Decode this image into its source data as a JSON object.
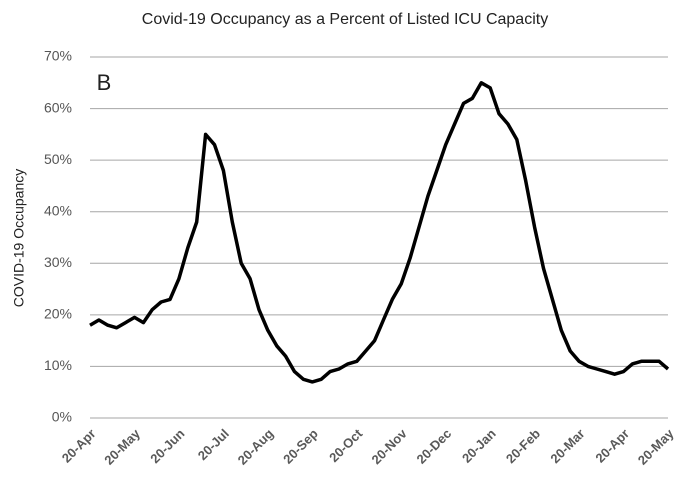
{
  "chart_data": {
    "type": "line",
    "title": "Covid-19 Occupancy as a Percent of Listed ICU Capacity",
    "annotation": "B",
    "y_label": "COVID-19 Occupancy",
    "categories": [
      "20-Apr",
      null,
      null,
      null,
      null,
      "20-May",
      null,
      null,
      null,
      null,
      "20-Jun",
      null,
      null,
      null,
      null,
      "20-Jul",
      null,
      null,
      null,
      null,
      "20-Aug",
      null,
      null,
      null,
      null,
      "20-Sep",
      null,
      null,
      null,
      null,
      "20-Oct",
      null,
      null,
      null,
      null,
      "20-Nov",
      null,
      null,
      null,
      null,
      "20-Dec",
      null,
      null,
      null,
      null,
      "20-Jan",
      null,
      null,
      null,
      null,
      "20-Feb",
      null,
      null,
      null,
      null,
      "20-Mar",
      null,
      null,
      null,
      null,
      "20-Apr",
      null,
      null,
      null,
      null,
      "20-May"
    ],
    "series": [
      {
        "name": "COVID-19 Occupancy",
        "color": "#000000",
        "values": [
          18,
          19,
          18,
          17.5,
          18.5,
          19.5,
          18.5,
          21,
          22.5,
          23,
          27,
          33,
          38,
          55,
          53,
          48,
          38,
          30,
          27,
          21,
          17,
          14,
          12,
          9,
          7.5,
          7,
          7.5,
          9,
          9.5,
          10.5,
          11,
          13,
          15,
          19,
          23,
          26,
          31,
          37,
          43,
          48,
          53,
          57,
          61,
          62,
          65,
          64,
          59,
          57,
          54,
          46,
          37,
          29,
          23,
          17,
          13,
          11,
          10,
          9.5,
          9,
          8.5,
          9,
          10.5,
          11,
          11,
          11,
          9.5
        ]
      }
    ],
    "ylim": [
      0,
      70
    ],
    "yticks": [
      {
        "value": 0,
        "label": "0%"
      },
      {
        "value": 10,
        "label": "10%"
      },
      {
        "value": 20,
        "label": "20%"
      },
      {
        "value": 30,
        "label": "30%"
      },
      {
        "value": 40,
        "label": "40%"
      },
      {
        "value": 50,
        "label": "50%"
      },
      {
        "value": 60,
        "label": "60%"
      },
      {
        "value": 70,
        "label": "70%"
      }
    ],
    "grid": true
  }
}
